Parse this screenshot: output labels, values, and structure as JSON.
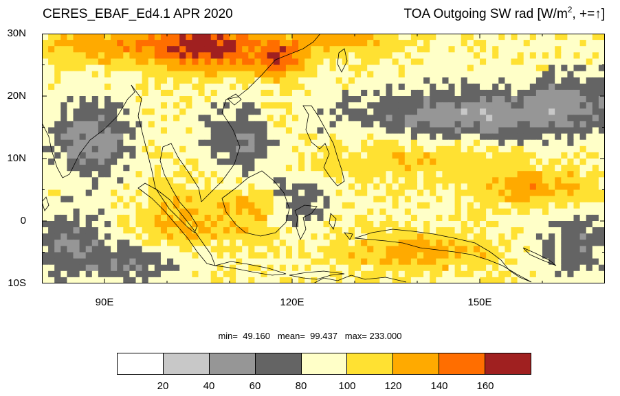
{
  "title_left": "CERES_EBAF_Ed4.1 APR 2020",
  "title_right": {
    "prefix": "TOA Outgoing SW rad [W/m",
    "superscript": "2",
    "suffix": ", +=",
    "arrow": "↑",
    "bracket": "]"
  },
  "axes": {
    "lat_labels": [
      "30N",
      "20N",
      "10N",
      "0",
      "10S"
    ],
    "lon_labels": [
      "90E",
      "120E",
      "150E"
    ],
    "lat_range": [
      -10,
      30
    ],
    "lon_range": [
      80,
      170
    ]
  },
  "stats": {
    "text": "min=  49.160   mean=  99.437   max= 233.000",
    "min": 49.16,
    "mean": 99.437,
    "max": 233.0
  },
  "colorbar": {
    "colors": [
      "#ffffff",
      "#c8c8c8",
      "#969696",
      "#646464",
      "#ffffc8",
      "#ffe132",
      "#ffaa00",
      "#ff6e00",
      "#a02020"
    ],
    "labels": [
      "20",
      "40",
      "60",
      "80",
      "100",
      "120",
      "140",
      "160"
    ]
  }
}
